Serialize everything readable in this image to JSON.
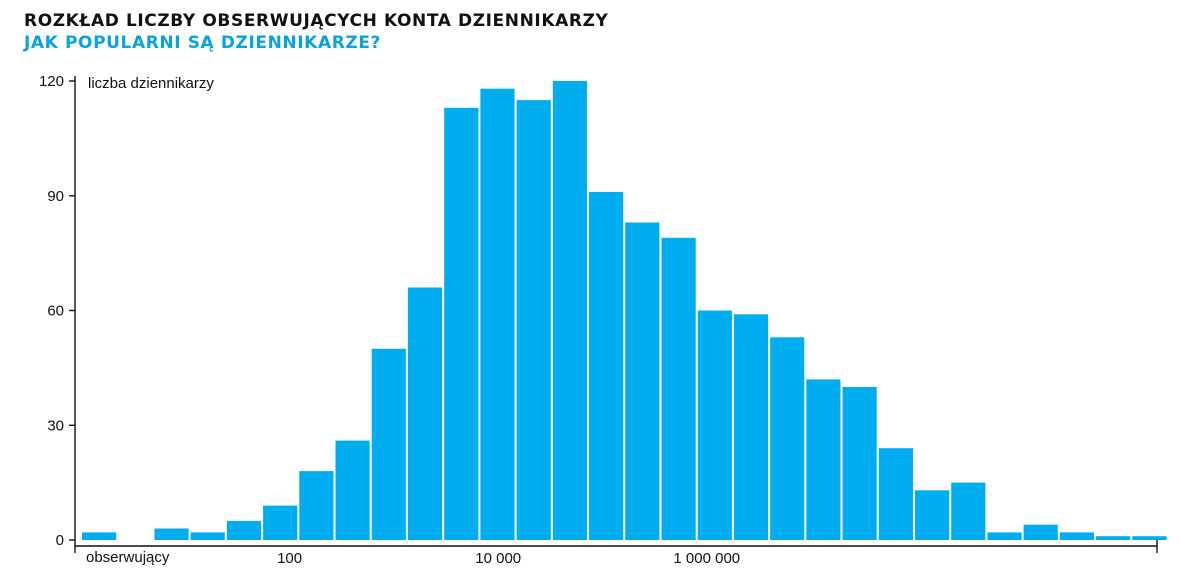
{
  "title": "ROZKŁAD LICZBY OBSERWUJĄCYCH KONTA DZIENNIKARZY",
  "subtitle": "JAK POPULARNI SĄ DZIENNIKARZE?",
  "colors": {
    "bar": "#00aeef",
    "subtitle": "#0aa3e0",
    "axis": "#111111"
  },
  "chart_data": {
    "type": "bar",
    "title": "ROZKŁAD LICZBY OBSERWUJĄCYCH KONTA DZIENNIKARZY",
    "subtitle": "JAK POPULARNI SĄ DZIENNIKARZE?",
    "xlabel": "obserwujący",
    "ylabel": "liczba dziennikarzy",
    "ylim": [
      0,
      120
    ],
    "yticks": [
      0,
      30,
      60,
      90,
      120
    ],
    "ytick_labels": [
      "0",
      "30",
      "60",
      "90",
      "120"
    ],
    "xscale": "log",
    "xlim": [
      1,
      1000000
    ],
    "xticks": [
      100,
      10000,
      1000000
    ],
    "xtick_labels": [
      "100",
      "10 000",
      "1 000 000"
    ],
    "grid": false,
    "bins_log10_start": [
      0.0,
      0.36,
      0.72,
      1.08,
      1.44,
      1.8,
      2.16,
      2.52,
      2.88,
      3.24,
      3.6,
      3.96,
      4.32,
      4.68,
      5.04,
      5.4,
      5.76,
      6.12,
      6.48,
      6.84,
      7.2,
      7.56,
      7.92,
      8.28,
      8.64,
      9.0,
      9.36,
      9.72,
      10.08,
      10.44
    ],
    "values": [
      2,
      0,
      3,
      2,
      5,
      9,
      18,
      26,
      50,
      66,
      113,
      118,
      115,
      120,
      91,
      83,
      79,
      60,
      59,
      53,
      42,
      40,
      24,
      13,
      15,
      2,
      4,
      2,
      1,
      1
    ]
  }
}
